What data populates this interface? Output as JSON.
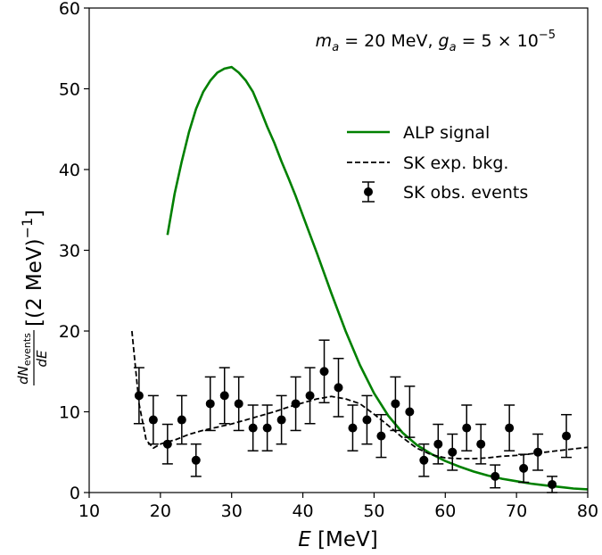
{
  "chart_data": {
    "type": "line",
    "annotation": {
      "ma_label": "m",
      "ma_sub": "a",
      "ma_value": " = 20 MeV, ",
      "ga_label": "g",
      "ga_sub": "a",
      "ga_value": " = 5 × 10",
      "ga_exp": "−5"
    },
    "xlabel": {
      "symbol": "E",
      "unit": " [MeV]"
    },
    "ylabel": {
      "num_base": "dN",
      "num_sub": "events",
      "den": "dE",
      "unit": " [(2 MeV)",
      "unit_exp": "−1",
      "unit_close": "]"
    },
    "xlim": [
      10,
      80
    ],
    "ylim": [
      0,
      60
    ],
    "xticks": [
      10,
      20,
      30,
      40,
      50,
      60,
      70,
      80
    ],
    "yticks": [
      0,
      10,
      20,
      30,
      40,
      50,
      60
    ],
    "grid": false,
    "legend_position": "upper-right",
    "legend": [
      {
        "label": "ALP signal",
        "style": "solid",
        "color": "#008000"
      },
      {
        "label": "SK exp. bkg.",
        "style": "dashed",
        "color": "#000000"
      },
      {
        "label": "SK obs. events",
        "style": "errorbar",
        "color": "#000000"
      }
    ],
    "series": [
      {
        "name": "ALP signal",
        "kind": "line",
        "color": "#008000",
        "x": [
          21,
          22,
          23,
          24,
          25,
          26,
          27,
          28,
          29,
          30,
          31,
          32,
          33,
          34,
          35,
          36,
          37,
          38,
          39,
          40,
          42,
          44,
          46,
          48,
          50,
          52,
          54,
          56,
          58,
          60,
          62,
          64,
          66,
          68,
          70,
          72,
          74,
          76,
          78,
          80
        ],
        "y": [
          31.9,
          37.0,
          41.0,
          44.6,
          47.5,
          49.6,
          51.0,
          52.0,
          52.5,
          52.7,
          52.0,
          51.0,
          49.6,
          47.5,
          45.3,
          43.3,
          41.0,
          38.9,
          36.7,
          34.3,
          29.6,
          24.7,
          20.0,
          15.8,
          12.3,
          9.5,
          7.4,
          5.9,
          4.8,
          3.9,
          3.2,
          2.6,
          2.1,
          1.7,
          1.4,
          1.1,
          0.9,
          0.7,
          0.5,
          0.4
        ]
      },
      {
        "name": "SK exp. bkg.",
        "kind": "line",
        "color": "#000000",
        "x": [
          16,
          17,
          18,
          19,
          20,
          21,
          22,
          24,
          26,
          28,
          30,
          32,
          34,
          36,
          38,
          40,
          42,
          44,
          46,
          48,
          50,
          52,
          54,
          56,
          58,
          60,
          62,
          64,
          66,
          68,
          70,
          72,
          74,
          76,
          78,
          80
        ],
        "y": [
          20.0,
          11.0,
          6.5,
          5.5,
          6.0,
          6.3,
          6.5,
          7.2,
          7.7,
          8.1,
          8.5,
          9.0,
          9.5,
          10.0,
          10.6,
          11.1,
          11.6,
          11.9,
          11.6,
          11.0,
          9.7,
          8.3,
          6.8,
          5.5,
          4.7,
          4.3,
          4.2,
          4.2,
          4.3,
          4.5,
          4.6,
          4.8,
          5.0,
          5.2,
          5.4,
          5.6
        ]
      },
      {
        "name": "SK obs. events",
        "kind": "errorbar",
        "color": "#000000",
        "x": [
          17,
          19,
          21,
          23,
          25,
          27,
          29,
          31,
          33,
          35,
          37,
          39,
          41,
          43,
          45,
          47,
          49,
          51,
          53,
          55,
          57,
          59,
          61,
          63,
          65,
          67,
          69,
          71,
          73,
          75,
          77
        ],
        "y": [
          12,
          9,
          6,
          9,
          4,
          11,
          12,
          11,
          8,
          8,
          9,
          11,
          12,
          15,
          13,
          8,
          9,
          7,
          11,
          10,
          4,
          6,
          5,
          8,
          6,
          2,
          8,
          3,
          5,
          1,
          7
        ]
      }
    ]
  }
}
